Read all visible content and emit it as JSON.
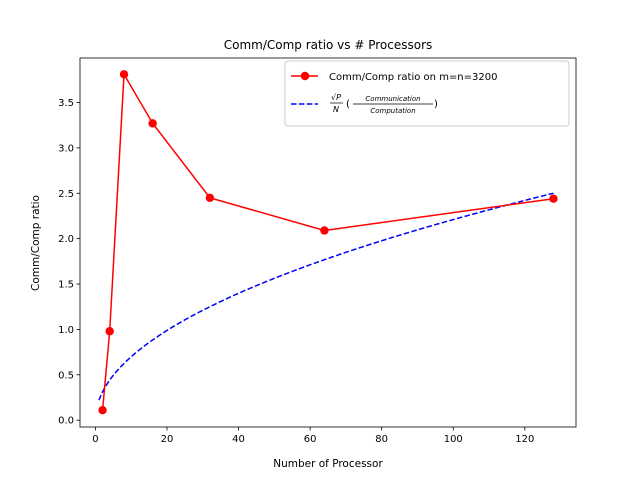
{
  "chart_data": {
    "type": "line",
    "title": "Comm/Comp ratio vs # Processors",
    "xlabel": "Number of Processor",
    "ylabel": "Comm/Comp ratio",
    "xlim": [
      -4.3,
      134.3
    ],
    "ylim": [
      -0.075,
      3.99
    ],
    "xticks": [
      0,
      20,
      40,
      60,
      80,
      100,
      120
    ],
    "xtick_labels": [
      "0",
      "20",
      "40",
      "60",
      "80",
      "100",
      "120"
    ],
    "yticks": [
      0.0,
      0.5,
      1.0,
      1.5,
      2.0,
      2.5,
      3.0,
      3.5
    ],
    "ytick_labels": [
      "0.0",
      "0.5",
      "1.0",
      "1.5",
      "2.0",
      "2.5",
      "3.0",
      "3.5"
    ],
    "grid": false,
    "legend_position": "upper-right",
    "series": [
      {
        "name": "Comm/Comp ratio on m=n=3200",
        "style": "solid-line-circle-markers",
        "color": "#ff0000",
        "x": [
          2,
          4,
          8,
          16,
          32,
          64,
          128
        ],
        "y": [
          0.11,
          0.98,
          3.81,
          3.27,
          2.45,
          2.09,
          2.44
        ]
      },
      {
        "name_parts": {
          "sqrt_p": "√P",
          "n": "N",
          "numerator": "Communication",
          "denominator": "Computation"
        },
        "style": "dashed-line",
        "color": "#0000ff",
        "formula": "0.221 * sqrt(x)",
        "x_range": [
          1,
          128
        ],
        "coefficient": 0.221
      }
    ]
  }
}
